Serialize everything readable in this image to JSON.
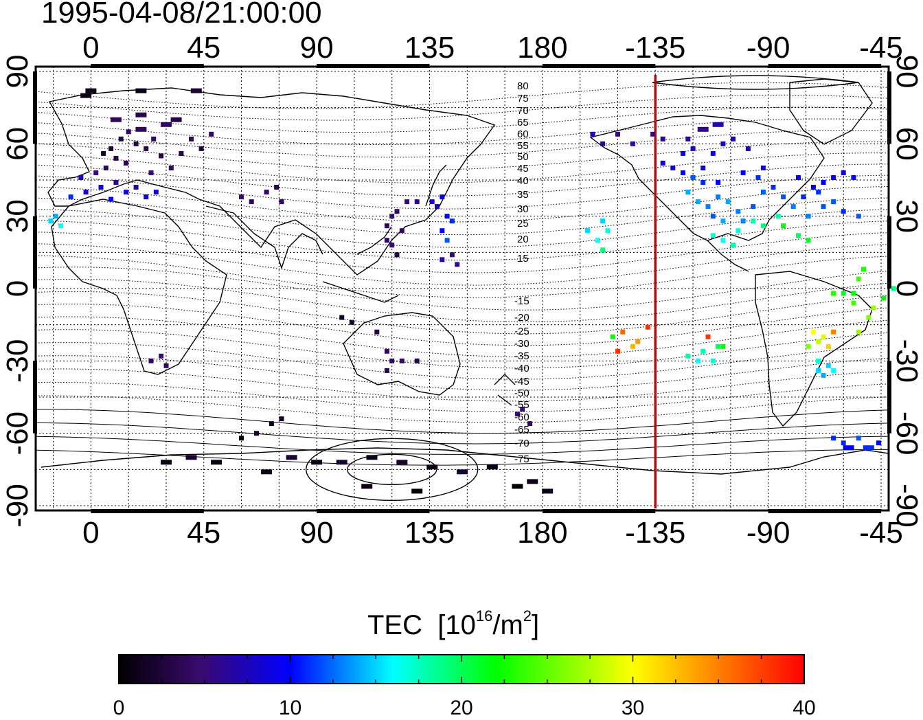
{
  "title": "1995-04-08/21:00:00",
  "colorbar": {
    "label_main": "TEC",
    "label_unit_pre": "[10",
    "label_unit_exp": "16",
    "label_unit_mid": "/m",
    "label_unit_exp2": "2",
    "label_unit_post": "]",
    "ticks": [
      "0",
      "10",
      "20",
      "30",
      "40"
    ],
    "range": [
      0,
      40
    ],
    "colors": [
      "#000000",
      "#5a10a0",
      "#0000ff",
      "#00ffff",
      "#00ff00",
      "#ffff00",
      "#ff0000"
    ]
  },
  "chart_data": {
    "type": "scatter",
    "projection": "equirectangular",
    "lon_center": 180,
    "x_ticks_top": [
      "0",
      "45",
      "90",
      "135",
      "180",
      "-135",
      "-90",
      "-45"
    ],
    "x_ticks_bottom": [
      "0",
      "45",
      "90",
      "135",
      "180",
      "-135",
      "-90",
      "-45"
    ],
    "y_ticks_left": [
      "90",
      "60",
      "30",
      "0",
      "-30",
      "-60",
      "-90"
    ],
    "y_ticks_right": [
      "90",
      "60",
      "30",
      "0",
      "-30",
      "-60",
      "-90"
    ],
    "lon_range": [
      -22,
      318
    ],
    "lat_range": [
      -92,
      92
    ],
    "grid": true,
    "terminator_lon": -135,
    "terminator_color": "#cc0000",
    "contour_labels_north": [
      "80",
      "75",
      "70",
      "65",
      "60",
      "55",
      "50",
      "45",
      "40",
      "35",
      "30",
      "25",
      "20",
      "15"
    ],
    "contour_labels_south": [
      "-15",
      "-20",
      "-25",
      "-30",
      "-35",
      "-40",
      "-45",
      "-50",
      "-55",
      "-60",
      "-65",
      "-70",
      "-75"
    ],
    "points": [
      [
        12,
        62,
        3
      ],
      [
        15,
        65,
        4
      ],
      [
        18,
        60,
        3
      ],
      [
        20,
        66,
        4
      ],
      [
        22,
        58,
        3
      ],
      [
        8,
        58,
        2
      ],
      [
        10,
        54,
        3
      ],
      [
        25,
        62,
        4
      ],
      [
        28,
        55,
        3
      ],
      [
        30,
        68,
        4
      ],
      [
        5,
        56,
        2
      ],
      [
        14,
        52,
        3
      ],
      [
        6,
        50,
        4
      ],
      [
        2,
        48,
        5
      ],
      [
        -4,
        46,
        7
      ],
      [
        -2,
        40,
        8
      ],
      [
        4,
        42,
        9
      ],
      [
        10,
        44,
        6
      ],
      [
        14,
        40,
        8
      ],
      [
        18,
        42,
        7
      ],
      [
        22,
        38,
        9
      ],
      [
        26,
        40,
        8
      ],
      [
        8,
        37,
        10
      ],
      [
        -8,
        38,
        11
      ],
      [
        -16,
        28,
        15
      ],
      [
        -14,
        30,
        14
      ],
      [
        -12,
        26,
        16
      ],
      [
        24,
        48,
        5
      ],
      [
        32,
        50,
        4
      ],
      [
        36,
        56,
        3
      ],
      [
        40,
        62,
        4
      ],
      [
        44,
        58,
        3
      ],
      [
        48,
        64,
        4
      ],
      [
        34,
        70,
        3
      ],
      [
        20,
        72,
        3
      ],
      [
        10,
        70,
        4
      ],
      [
        0,
        82,
        1
      ],
      [
        20,
        82,
        1
      ],
      [
        42,
        82,
        2
      ],
      [
        -2,
        80,
        1
      ],
      [
        60,
        38,
        5
      ],
      [
        64,
        36,
        4
      ],
      [
        70,
        40,
        4
      ],
      [
        74,
        42,
        3
      ],
      [
        76,
        36,
        4
      ],
      [
        118,
        26,
        4
      ],
      [
        120,
        30,
        5
      ],
      [
        122,
        32,
        4
      ],
      [
        124,
        24,
        4
      ],
      [
        120,
        18,
        5
      ],
      [
        122,
        14,
        3
      ],
      [
        118,
        20,
        4
      ],
      [
        126,
        36,
        5
      ],
      [
        130,
        36,
        6
      ],
      [
        136,
        36,
        8
      ],
      [
        138,
        34,
        8
      ],
      [
        140,
        38,
        9
      ],
      [
        142,
        30,
        10
      ],
      [
        144,
        28,
        11
      ],
      [
        140,
        24,
        10
      ],
      [
        142,
        20,
        12
      ],
      [
        140,
        12,
        6
      ],
      [
        144,
        14,
        5
      ],
      [
        146,
        10,
        6
      ],
      [
        100,
        -12,
        2
      ],
      [
        104,
        -14,
        2
      ],
      [
        114,
        -18,
        3
      ],
      [
        118,
        -26,
        4
      ],
      [
        120,
        -30,
        4
      ],
      [
        118,
        -34,
        3
      ],
      [
        124,
        -30,
        4
      ],
      [
        130,
        -30,
        3
      ],
      [
        28,
        -28,
        5
      ],
      [
        24,
        -30,
        4
      ],
      [
        30,
        -32,
        4
      ],
      [
        76,
        -54,
        2
      ],
      [
        72,
        -56,
        1
      ],
      [
        66,
        -60,
        2
      ],
      [
        60,
        -62,
        1
      ],
      [
        30,
        -72,
        1
      ],
      [
        40,
        -70,
        2
      ],
      [
        50,
        -72,
        1
      ],
      [
        70,
        -76,
        1
      ],
      [
        80,
        -70,
        2
      ],
      [
        90,
        -72,
        1
      ],
      [
        100,
        -72,
        2
      ],
      [
        112,
        -70,
        1
      ],
      [
        124,
        -72,
        2
      ],
      [
        136,
        -74,
        1
      ],
      [
        148,
        -76,
        2
      ],
      [
        160,
        -74,
        1
      ],
      [
        170,
        -82,
        0
      ],
      [
        130,
        -84,
        0
      ],
      [
        110,
        -82,
        1
      ],
      [
        176,
        -80,
        1
      ],
      [
        182,
        -84,
        1
      ],
      [
        175,
        -56,
        4
      ],
      [
        170,
        -52,
        5
      ],
      [
        172,
        -50,
        5
      ],
      [
        200,
        64,
        7
      ],
      [
        204,
        60,
        6
      ],
      [
        210,
        64,
        5
      ],
      [
        216,
        60,
        6
      ],
      [
        224,
        64,
        5
      ],
      [
        228,
        62,
        6
      ],
      [
        228,
        52,
        8
      ],
      [
        232,
        50,
        9
      ],
      [
        236,
        48,
        10
      ],
      [
        240,
        46,
        12
      ],
      [
        244,
        44,
        11
      ],
      [
        238,
        40,
        14
      ],
      [
        242,
        36,
        14
      ],
      [
        246,
        34,
        13
      ],
      [
        250,
        38,
        13
      ],
      [
        254,
        36,
        14
      ],
      [
        258,
        32,
        13
      ],
      [
        252,
        28,
        14
      ],
      [
        248,
        30,
        12
      ],
      [
        260,
        28,
        13
      ],
      [
        264,
        34,
        12
      ],
      [
        268,
        40,
        12
      ],
      [
        272,
        42,
        11
      ],
      [
        276,
        38,
        12
      ],
      [
        280,
        34,
        13
      ],
      [
        286,
        30,
        13
      ],
      [
        284,
        38,
        11
      ],
      [
        288,
        42,
        10
      ],
      [
        292,
        44,
        10
      ],
      [
        296,
        46,
        9
      ],
      [
        300,
        48,
        9
      ],
      [
        304,
        46,
        10
      ],
      [
        296,
        36,
        12
      ],
      [
        282,
        22,
        20
      ],
      [
        286,
        20,
        21
      ],
      [
        276,
        26,
        22
      ],
      [
        248,
        22,
        17
      ],
      [
        252,
        20,
        16
      ],
      [
        256,
        18,
        18
      ],
      [
        258,
        24,
        17
      ],
      [
        264,
        28,
        18
      ],
      [
        268,
        26,
        19
      ],
      [
        274,
        30,
        18
      ],
      [
        236,
        56,
        9
      ],
      [
        240,
        58,
        8
      ],
      [
        248,
        56,
        9
      ],
      [
        252,
        60,
        8
      ],
      [
        256,
        62,
        7
      ],
      [
        262,
        58,
        8
      ],
      [
        268,
        50,
        9
      ],
      [
        266,
        46,
        11
      ],
      [
        260,
        48,
        10
      ],
      [
        250,
        44,
        10
      ],
      [
        244,
        50,
        9
      ],
      [
        238,
        62,
        6
      ],
      [
        244,
        66,
        6
      ],
      [
        250,
        68,
        7
      ],
      [
        282,
        46,
        10
      ],
      [
        290,
        40,
        11
      ],
      [
        292,
        34,
        12
      ],
      [
        300,
        32,
        11
      ],
      [
        306,
        30,
        12
      ],
      [
        198,
        24,
        15
      ],
      [
        202,
        20,
        16
      ],
      [
        206,
        24,
        17
      ],
      [
        204,
        28,
        15
      ],
      [
        204,
        16,
        19
      ],
      [
        208,
        -20,
        22
      ],
      [
        212,
        -18,
        36
      ],
      [
        216,
        -24,
        33
      ],
      [
        218,
        -22,
        34
      ],
      [
        222,
        -16,
        38
      ],
      [
        210,
        -26,
        38
      ],
      [
        238,
        -28,
        18
      ],
      [
        244,
        -26,
        18
      ],
      [
        246,
        -20,
        38
      ],
      [
        250,
        -24,
        20
      ],
      [
        252,
        -24,
        22
      ],
      [
        248,
        -30,
        17
      ],
      [
        242,
        -30,
        16
      ],
      [
        288,
        -18,
        30
      ],
      [
        290,
        -22,
        28
      ],
      [
        292,
        -20,
        29
      ],
      [
        294,
        -24,
        32
      ],
      [
        296,
        -18,
        35
      ],
      [
        290,
        -30,
        17
      ],
      [
        294,
        -32,
        15
      ],
      [
        292,
        -36,
        14
      ],
      [
        290,
        -34,
        15
      ],
      [
        296,
        -34,
        16
      ],
      [
        286,
        -24,
        26
      ],
      [
        306,
        -18,
        27
      ],
      [
        310,
        -12,
        26
      ],
      [
        312,
        -8,
        27
      ],
      [
        316,
        -4,
        22
      ],
      [
        320,
        0,
        19
      ],
      [
        304,
        -2,
        22
      ],
      [
        306,
        4,
        24
      ],
      [
        308,
        8,
        23
      ],
      [
        300,
        -2,
        21
      ],
      [
        296,
        -2,
        23
      ],
      [
        304,
        -6,
        24
      ],
      [
        302,
        -66,
        10
      ],
      [
        296,
        -62,
        11
      ],
      [
        300,
        -64,
        11
      ],
      [
        306,
        -62,
        12
      ],
      [
        310,
        -66,
        11
      ],
      [
        314,
        -64,
        10
      ]
    ],
    "north_magnetic_contours_note": "",
    "continents": "coastline outlines"
  }
}
